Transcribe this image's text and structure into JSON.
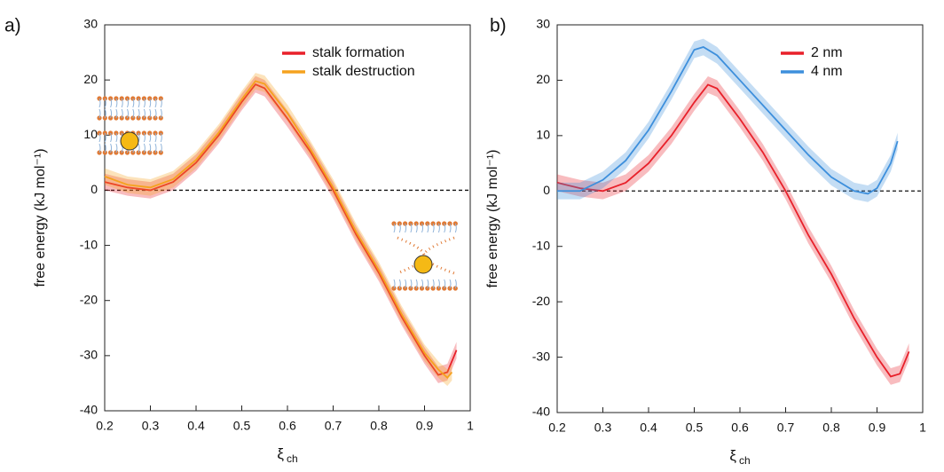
{
  "chart_data": [
    {
      "type": "line",
      "panel": "a)",
      "xlabel": "ξ",
      "xlabel_sub": "ch",
      "ylabel": "free energy (kJ mol⁻¹)",
      "xlim": [
        0.2,
        1
      ],
      "xticks": [
        0.2,
        0.3,
        0.4,
        0.5,
        0.6,
        0.7,
        0.8,
        0.9,
        1
      ],
      "ylim": [
        -40,
        30
      ],
      "yticks": [
        -40,
        -30,
        -20,
        -10,
        0,
        10,
        20,
        30
      ],
      "hline": 0,
      "grid": false,
      "legend": "upper right",
      "series": [
        {
          "name": "stalk formation",
          "color": "#e8202a",
          "band": 1.5,
          "x": [
            0.2,
            0.25,
            0.3,
            0.35,
            0.4,
            0.45,
            0.5,
            0.53,
            0.55,
            0.6,
            0.65,
            0.7,
            0.75,
            0.8,
            0.85,
            0.9,
            0.93,
            0.95,
            0.97
          ],
          "values": [
            1.5,
            0.5,
            0,
            1.5,
            5,
            10,
            16,
            19.2,
            18.5,
            13,
            7,
            0,
            -8,
            -15,
            -23,
            -30,
            -33.5,
            -33,
            -29
          ]
        },
        {
          "name": "stalk destruction",
          "color": "#f5a21e",
          "band": 1.5,
          "x": [
            0.2,
            0.25,
            0.3,
            0.35,
            0.4,
            0.45,
            0.5,
            0.53,
            0.55,
            0.6,
            0.65,
            0.7,
            0.75,
            0.8,
            0.85,
            0.9,
            0.93,
            0.95,
            0.96
          ],
          "values": [
            2.5,
            1,
            0.5,
            2,
            5.5,
            10.5,
            16.5,
            19.8,
            19.3,
            14,
            7.5,
            0.5,
            -7.5,
            -14.5,
            -22.5,
            -29.5,
            -32.5,
            -34,
            -33
          ]
        }
      ]
    },
    {
      "type": "line",
      "panel": "b)",
      "xlabel": "ξ",
      "xlabel_sub": "ch",
      "ylabel": "free energy (kJ mol⁻¹)",
      "xlim": [
        0.2,
        1
      ],
      "xticks": [
        0.2,
        0.3,
        0.4,
        0.5,
        0.6,
        0.7,
        0.8,
        0.9,
        1
      ],
      "ylim": [
        -40,
        30
      ],
      "yticks": [
        -40,
        -30,
        -20,
        -10,
        0,
        10,
        20,
        30
      ],
      "hline": 0,
      "grid": false,
      "legend": "upper right",
      "series": [
        {
          "name": "2 nm",
          "color": "#e8202a",
          "band": 1.5,
          "x": [
            0.2,
            0.25,
            0.3,
            0.35,
            0.4,
            0.45,
            0.5,
            0.53,
            0.55,
            0.6,
            0.65,
            0.7,
            0.75,
            0.8,
            0.85,
            0.9,
            0.93,
            0.95,
            0.97
          ],
          "values": [
            1.5,
            0.5,
            0,
            1.5,
            5,
            10,
            16,
            19.2,
            18.5,
            13,
            7,
            0,
            -8,
            -15,
            -23,
            -30,
            -33.5,
            -33,
            -29
          ]
        },
        {
          "name": "4 nm",
          "color": "#3d8fdc",
          "band": 1.5,
          "x": [
            0.2,
            0.25,
            0.3,
            0.35,
            0.4,
            0.45,
            0.5,
            0.52,
            0.55,
            0.6,
            0.65,
            0.7,
            0.75,
            0.8,
            0.85,
            0.88,
            0.9,
            0.93,
            0.945
          ],
          "values": [
            0,
            0,
            2,
            5.5,
            11,
            18,
            25.5,
            26,
            24.5,
            20,
            15.5,
            11,
            6.5,
            2.5,
            0,
            -0.5,
            0.5,
            5,
            9
          ]
        }
      ]
    }
  ]
}
